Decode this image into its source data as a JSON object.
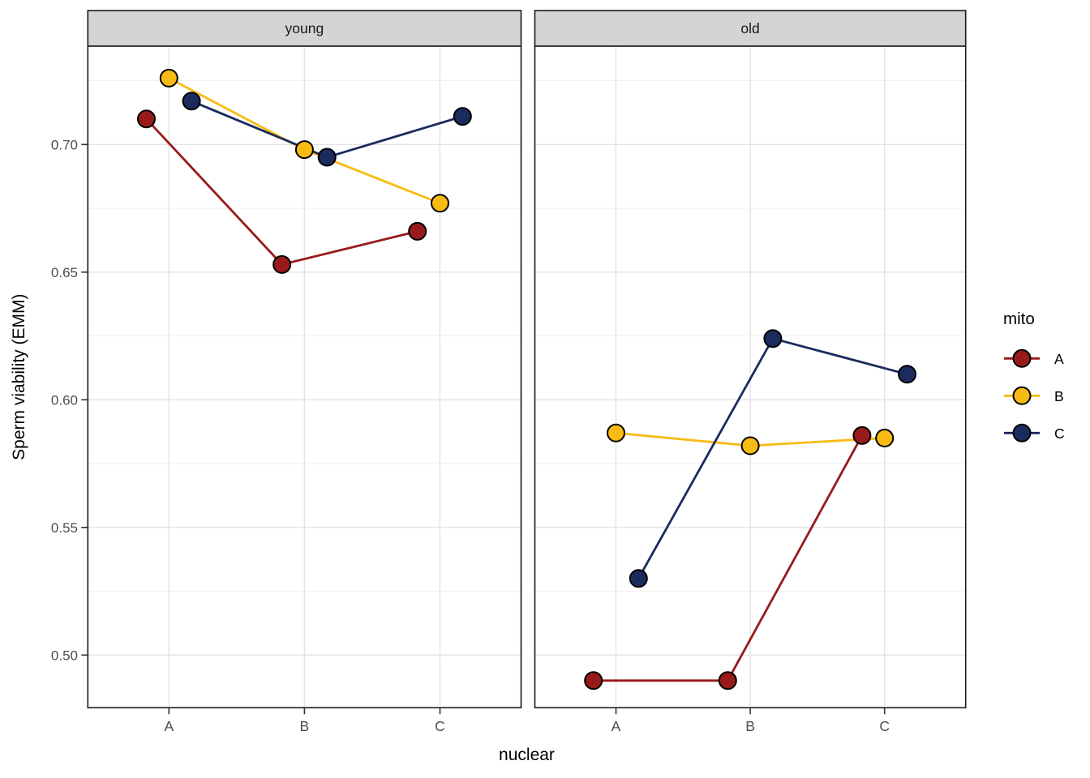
{
  "chart_data": {
    "type": "line",
    "title": "",
    "xlabel": "nuclear",
    "ylabel": "Sperm viability (EMM)",
    "categories": [
      "A",
      "B",
      "C"
    ],
    "facets": [
      {
        "label": "young"
      },
      {
        "label": "old"
      }
    ],
    "ylim": [
      0.478,
      0.739
    ],
    "yticks": [
      {
        "value": 0.7,
        "label": "0.70"
      },
      {
        "value": 0.65,
        "label": "0.65"
      },
      {
        "value": 0.6,
        "label": "0.60"
      },
      {
        "value": 0.55,
        "label": "0.55"
      },
      {
        "value": 0.5,
        "label": "0.50"
      }
    ],
    "minor_gridlines": [
      0.725,
      0.675,
      0.625,
      0.575,
      0.525
    ],
    "grid": {
      "major": true,
      "minor": true
    },
    "legend": {
      "title": "mito",
      "position": "right"
    },
    "series": [
      {
        "name": "A",
        "color": "#981A1A",
        "values": {
          "young": [
            0.71,
            0.653,
            0.666
          ],
          "old": [
            0.49,
            0.49,
            0.586
          ]
        }
      },
      {
        "name": "B",
        "color": "#F8BB13",
        "values": {
          "young": [
            0.726,
            0.698,
            0.677
          ],
          "old": [
            0.587,
            0.582,
            0.585
          ]
        }
      },
      {
        "name": "C",
        "color": "#1C2B5E",
        "values": {
          "young": [
            0.717,
            0.695,
            0.711
          ],
          "old": [
            0.53,
            0.624,
            0.61
          ]
        }
      }
    ],
    "colors": {
      "background": "#FFFFFF",
      "panel_background": "#FFFFFF",
      "strip_fill": "#D4D4D4",
      "panel_border": "#1A1A1A",
      "grid_major": "#E3E3E3",
      "grid_minor": "#EFEFEF",
      "tick_mark": "#333333",
      "tick_label": "#4D4D4D",
      "point_outline": "#000000"
    }
  }
}
